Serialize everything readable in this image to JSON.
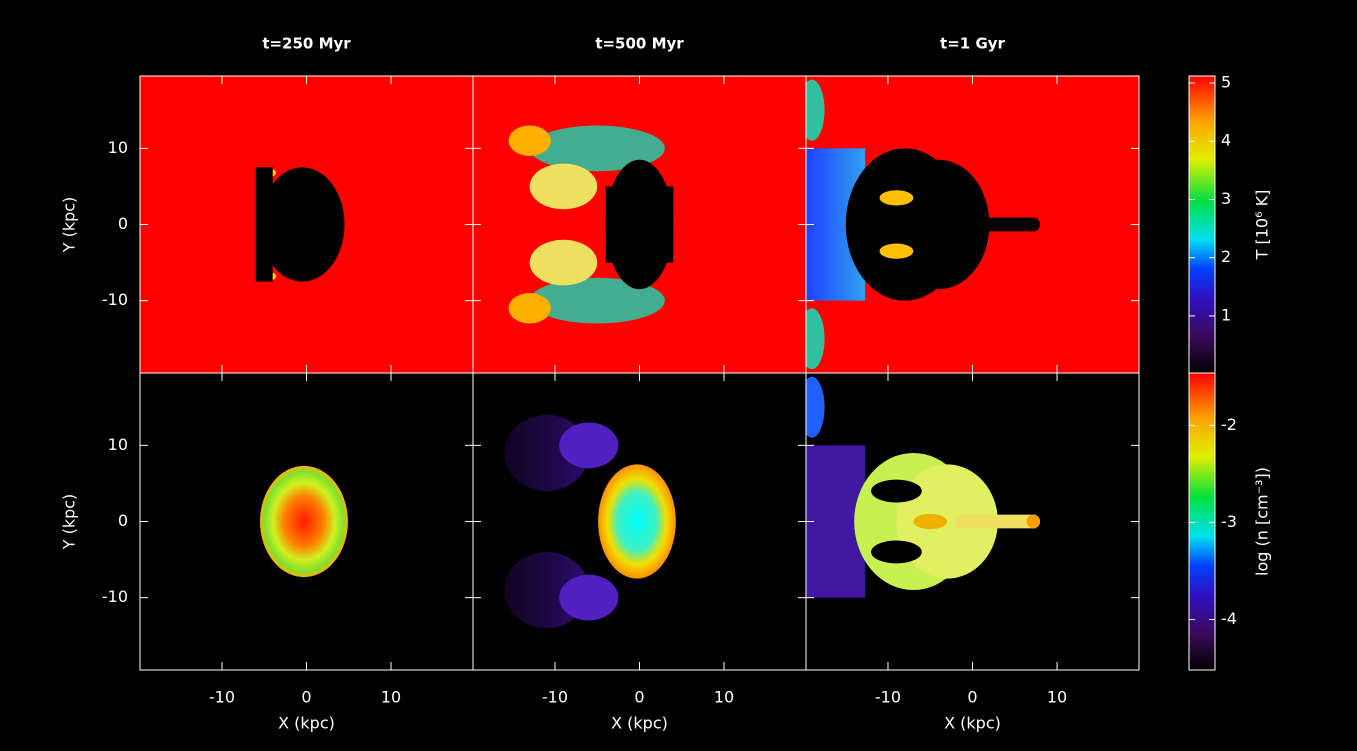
{
  "chart_data": {
    "type": "image-grid",
    "titles": [
      "t=250 Myr",
      "t=500 Myr",
      "t=1 Gyr"
    ],
    "xlabel": "X (kpc)",
    "ylabel": "Y (kpc)",
    "xlim": [
      -19.7,
      19.7
    ],
    "xticks": [
      -10,
      0,
      10
    ],
    "ylim": [
      -19.5,
      19.5
    ],
    "yticks": [
      -10,
      0,
      10
    ],
    "colorbars": [
      {
        "label": "T [10⁶ K]",
        "lim": [
          0.02,
          5.12
        ],
        "ticks": [
          1,
          2,
          3,
          4,
          5
        ]
      },
      {
        "label": "log (n [cm⁻³])",
        "lim": [
          -4.52,
          -1.46
        ],
        "ticks": [
          -4,
          -3,
          -2
        ]
      }
    ]
  }
}
